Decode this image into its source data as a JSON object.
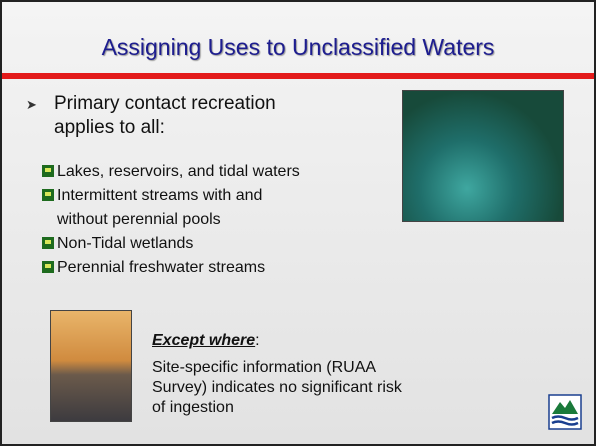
{
  "header": {
    "title": "Assigning Uses to Unclassified Waters"
  },
  "bullet": {
    "text": "Primary contact recreation applies to all:",
    "items": [
      "Lakes, reservoirs, and tidal waters",
      "Intermittent streams with and without perennial pools",
      "Non-Tidal wetlands",
      "Perennial freshwater streams"
    ]
  },
  "exception": {
    "label": "Except where",
    "suffix": ":",
    "text": "Site-specific information (RUAA Survey) indicates no significant risk of ingestion"
  }
}
